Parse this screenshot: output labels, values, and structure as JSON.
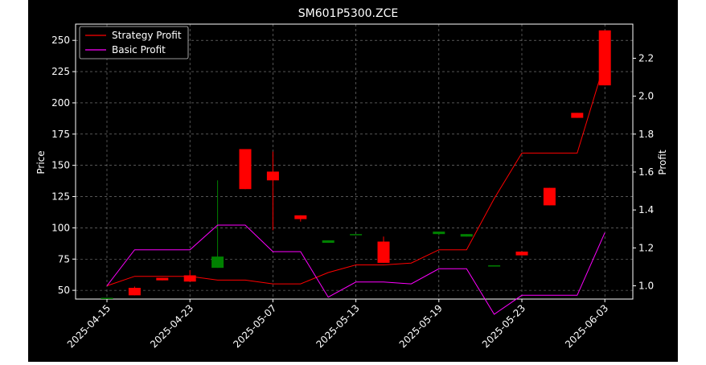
{
  "chart_data": {
    "type": "candlestick",
    "title": "SM601P5300.ZCE",
    "ylabel_left": "Price",
    "ylabel_right": "Profit",
    "xlabel": "",
    "ylim_left": [
      43,
      263
    ],
    "ylim_right": [
      0.93,
      2.38
    ],
    "yticks_left": [
      50,
      75,
      100,
      125,
      150,
      175,
      200,
      225,
      250
    ],
    "yticks_right": [
      1.0,
      1.2,
      1.4,
      1.6,
      1.8,
      2.0,
      2.2
    ],
    "xticks": [
      {
        "index": 0,
        "label": "2025-04-15"
      },
      {
        "index": 6,
        "label": "2025-04-23"
      },
      {
        "index": 12,
        "label": "2025-05-07"
      },
      {
        "index": 18,
        "label": "2025-05-13"
      },
      {
        "index": 24,
        "label": "2025-05-19"
      },
      {
        "index": 30,
        "label": "2025-05-23"
      },
      {
        "index": 36,
        "label": "2025-06-03"
      }
    ],
    "grid": true,
    "legend_position": "upper left",
    "colors": {
      "up": "#008000",
      "down": "#ff0000",
      "strategy": "#ff0000",
      "basic": "#ff00ff",
      "grid": "#888888",
      "background": "#000000",
      "text": "#ffffff"
    },
    "candles": [
      {
        "i": 0,
        "open": 44,
        "close": 44,
        "high": 44,
        "low": 44
      },
      {
        "i": 2,
        "open": 52,
        "close": 46,
        "high": 53,
        "low": 46
      },
      {
        "i": 4,
        "open": 60,
        "close": 58,
        "high": 60,
        "low": 58
      },
      {
        "i": 6,
        "open": 62,
        "close": 57,
        "high": 66,
        "low": 57
      },
      {
        "i": 8,
        "open": 68,
        "close": 77,
        "high": 138,
        "low": 68
      },
      {
        "i": 10,
        "open": 163,
        "close": 131,
        "high": 163,
        "low": 131
      },
      {
        "i": 12,
        "open": 145,
        "close": 138,
        "high": 161,
        "low": 98
      },
      {
        "i": 14,
        "open": 110,
        "close": 107,
        "high": 110,
        "low": 105
      },
      {
        "i": 16,
        "open": 88,
        "close": 90,
        "high": 90,
        "low": 88
      },
      {
        "i": 18,
        "open": 95,
        "close": 95,
        "high": 95,
        "low": 95
      },
      {
        "i": 20,
        "open": 89,
        "close": 72,
        "high": 93,
        "low": 72
      },
      {
        "i": 24,
        "open": 95,
        "close": 97,
        "high": 97,
        "low": 94
      },
      {
        "i": 26,
        "open": 93,
        "close": 95,
        "high": 95,
        "low": 93
      },
      {
        "i": 28,
        "open": 70,
        "close": 70,
        "high": 70,
        "low": 70
      },
      {
        "i": 30,
        "open": 81,
        "close": 78,
        "high": 81,
        "low": 78
      },
      {
        "i": 32,
        "open": 132,
        "close": 118,
        "high": 132,
        "low": 118
      },
      {
        "i": 34,
        "open": 192,
        "close": 188,
        "high": 192,
        "low": 188
      },
      {
        "i": 36,
        "open": 258,
        "close": 214,
        "high": 258,
        "low": 214
      }
    ],
    "series": [
      {
        "name": "Strategy Profit",
        "axis": "right",
        "x": [
          0,
          2,
          4,
          6,
          8,
          10,
          12,
          14,
          16,
          18,
          20,
          22,
          24,
          26,
          28,
          30,
          32,
          34,
          36
        ],
        "values": [
          1.0,
          1.05,
          1.05,
          1.05,
          1.03,
          1.03,
          1.01,
          1.01,
          1.07,
          1.11,
          1.11,
          1.12,
          1.19,
          1.19,
          1.46,
          1.7,
          1.7,
          1.7,
          2.18
        ]
      },
      {
        "name": "Basic Profit",
        "axis": "right",
        "x": [
          0,
          2,
          4,
          6,
          8,
          10,
          12,
          14,
          16,
          18,
          20,
          22,
          24,
          26,
          28,
          30,
          32,
          34,
          36
        ],
        "values": [
          1.0,
          1.19,
          1.19,
          1.19,
          1.32,
          1.32,
          1.18,
          1.18,
          0.94,
          1.02,
          1.02,
          1.01,
          1.09,
          1.09,
          0.85,
          0.95,
          0.95,
          0.95,
          1.28
        ]
      }
    ]
  }
}
